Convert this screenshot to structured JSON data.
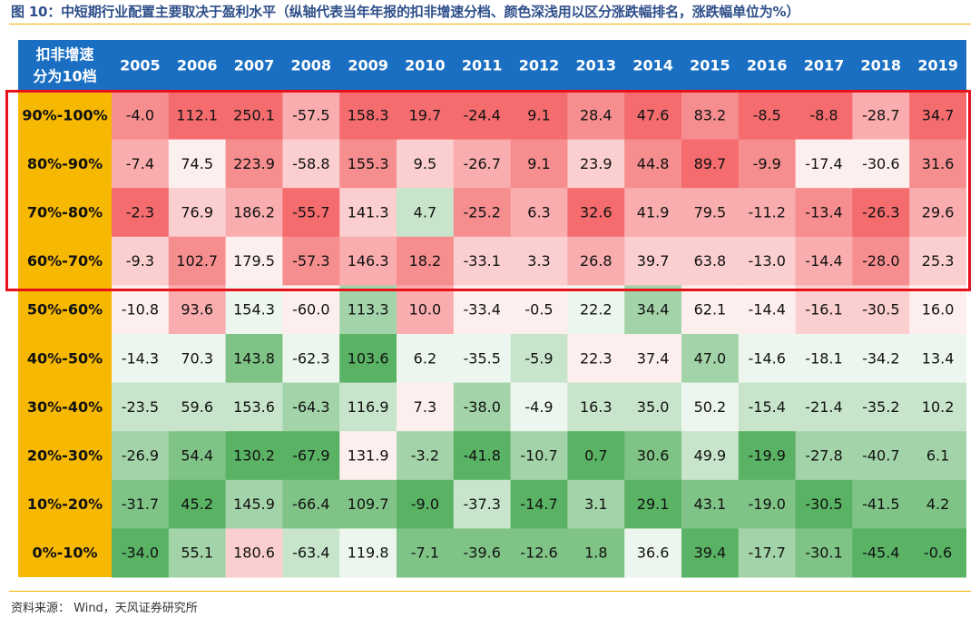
{
  "title": "图 10：中短期行业配置主要取决于盈利水平（纵轴代表当年年报的扣非增速分档、颜色深浅用以区分涨跌幅排名，涨跌幅单位为%）",
  "source": "资料来源： Wind，天风证券研究所",
  "colors": {
    "header_bg": "#1a6fc2",
    "row_label_bg": "#f6b800",
    "header_text": "#ffffff",
    "highlight": "#e8121a"
  },
  "chart_data": {
    "type": "heatmap",
    "corner_label": [
      "扣非增速",
      "分为10档"
    ],
    "columns": [
      "2005",
      "2006",
      "2007",
      "2008",
      "2009",
      "2010",
      "2011",
      "2012",
      "2013",
      "2014",
      "2015",
      "2016",
      "2017",
      "2018",
      "2019"
    ],
    "rows": [
      "90%-100%",
      "80%-90%",
      "70%-80%",
      "60%-70%",
      "50%-60%",
      "40%-50%",
      "30%-40%",
      "20%-30%",
      "10%-20%",
      "0%-10%"
    ],
    "values": [
      [
        "-4.0",
        "112.1",
        "250.1",
        "-57.5",
        "158.3",
        "19.7",
        "-24.4",
        "9.1",
        "28.4",
        "47.6",
        "83.2",
        "-8.5",
        "-8.8",
        "-28.7",
        "34.7"
      ],
      [
        "-7.4",
        "74.5",
        "223.9",
        "-58.8",
        "155.3",
        "9.5",
        "-26.7",
        "9.1",
        "23.9",
        "44.8",
        "89.7",
        "-9.9",
        "-17.4",
        "-30.6",
        "31.6"
      ],
      [
        "-2.3",
        "76.9",
        "186.2",
        "-55.7",
        "141.3",
        "4.7",
        "-25.2",
        "6.3",
        "32.6",
        "41.9",
        "79.5",
        "-11.2",
        "-13.4",
        "-26.3",
        "29.6"
      ],
      [
        "-9.3",
        "102.7",
        "179.5",
        "-57.3",
        "146.3",
        "18.2",
        "-33.1",
        "3.3",
        "26.8",
        "39.7",
        "63.8",
        "-13.0",
        "-14.4",
        "-28.0",
        "25.3"
      ],
      [
        "-10.8",
        "93.6",
        "154.3",
        "-60.0",
        "113.3",
        "10.0",
        "-33.4",
        "-0.5",
        "22.2",
        "34.4",
        "62.1",
        "-14.4",
        "-16.1",
        "-30.5",
        "16.0"
      ],
      [
        "-14.3",
        "70.3",
        "143.8",
        "-62.3",
        "103.6",
        "6.2",
        "-35.5",
        "-5.9",
        "22.3",
        "37.4",
        "47.0",
        "-14.6",
        "-18.1",
        "-34.2",
        "13.4"
      ],
      [
        "-23.5",
        "59.6",
        "153.6",
        "-64.3",
        "116.9",
        "7.3",
        "-38.0",
        "-4.9",
        "16.3",
        "35.0",
        "50.2",
        "-15.4",
        "-21.4",
        "-35.2",
        "10.2"
      ],
      [
        "-26.9",
        "54.4",
        "130.2",
        "-67.9",
        "131.9",
        "-3.2",
        "-41.8",
        "-10.7",
        "0.7",
        "30.6",
        "49.9",
        "-19.9",
        "-27.8",
        "-40.7",
        "6.1"
      ],
      [
        "-31.7",
        "45.2",
        "145.9",
        "-66.4",
        "109.7",
        "-9.0",
        "-37.3",
        "-14.7",
        "3.1",
        "29.1",
        "43.1",
        "-19.0",
        "-30.5",
        "-41.5",
        "4.2"
      ],
      [
        "-34.0",
        "55.1",
        "180.6",
        "-63.4",
        "119.8",
        "-7.1",
        "-39.6",
        "-12.6",
        "1.8",
        "36.6",
        "39.4",
        "-17.7",
        "-30.1",
        "-45.4",
        "-0.6"
      ]
    ],
    "highlighted_rows": [
      "90%-100%",
      "80%-90%",
      "70%-80%",
      "60%-70%"
    ],
    "color_scale": "per-column rank: red = high, white = middle, green = low"
  }
}
